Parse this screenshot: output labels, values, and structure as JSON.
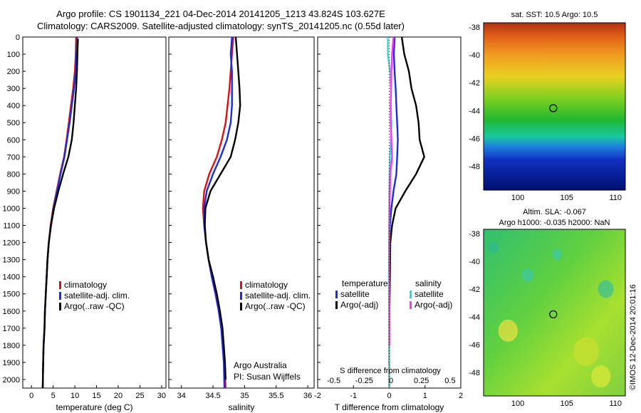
{
  "header": {
    "line1": "Argo profile: CS 1901134_221 04-Dec-2014 20141205_1213 43.824S 103.627E",
    "line2": "Climatology: CARS2009. Satellite-adjusted climatology: synTS_20141205.nc (0.55d later)"
  },
  "watermark": "©IMOS 12-Dec-2014 20:01:16",
  "colors": {
    "climatology": "#e01010",
    "satellite": "#1a2ee0",
    "argo": "#000000",
    "sat_salinity": "#20e0e0",
    "argo_salinity": "#ff33ff"
  },
  "chart_data": [
    {
      "type": "line",
      "id": "temperature",
      "xlabel": "temperature (deg C)",
      "xlim": [
        -2,
        31
      ],
      "xticks": [
        0,
        5,
        10,
        15,
        20,
        25,
        30
      ],
      "ylim": [
        0,
        2050
      ],
      "yticks": [
        0,
        100,
        200,
        300,
        400,
        500,
        600,
        700,
        800,
        900,
        1000,
        1100,
        1200,
        1300,
        1400,
        1500,
        1600,
        1700,
        1800,
        1900,
        2000
      ],
      "legend": [
        "climatology",
        "satellite-adj. clim.",
        "Argo(..raw -QC)"
      ],
      "series": [
        {
          "name": "climatology",
          "color": "#e01010",
          "points": [
            [
              10.3,
              0
            ],
            [
              10.2,
              100
            ],
            [
              10,
              200
            ],
            [
              9.6,
              300
            ],
            [
              9.1,
              400
            ],
            [
              8.6,
              500
            ],
            [
              8.1,
              600
            ],
            [
              7.5,
              700
            ],
            [
              6.6,
              800
            ],
            [
              5.8,
              900
            ],
            [
              5,
              1000
            ],
            [
              4.4,
              1100
            ],
            [
              4,
              1200
            ],
            [
              3.7,
              1300
            ],
            [
              3.5,
              1400
            ],
            [
              3.3,
              1500
            ],
            [
              3.1,
              1600
            ],
            [
              3,
              1700
            ],
            [
              2.8,
              1800
            ],
            [
              2.7,
              1900
            ],
            [
              2.6,
              2050
            ]
          ]
        },
        {
          "name": "satellite-adj. clim.",
          "color": "#1a2ee0",
          "points": [
            [
              10.5,
              0
            ],
            [
              10.4,
              100
            ],
            [
              10.2,
              200
            ],
            [
              9.8,
              300
            ],
            [
              9.3,
              400
            ],
            [
              8.8,
              500
            ],
            [
              8.2,
              600
            ],
            [
              7.6,
              700
            ],
            [
              6.7,
              800
            ],
            [
              5.9,
              900
            ],
            [
              5.1,
              1000
            ],
            [
              4.5,
              1100
            ],
            [
              4,
              1200
            ],
            [
              3.7,
              1300
            ],
            [
              3.5,
              1400
            ],
            [
              3.3,
              1500
            ],
            [
              3.1,
              1600
            ],
            [
              3,
              1700
            ],
            [
              2.8,
              1800
            ],
            [
              2.7,
              1900
            ],
            [
              2.6,
              2050
            ]
          ]
        },
        {
          "name": "Argo(..raw -QC)",
          "color": "#000000",
          "points": [
            [
              10.7,
              10
            ],
            [
              10.6,
              100
            ],
            [
              10.5,
              200
            ],
            [
              10.3,
              300
            ],
            [
              10,
              400
            ],
            [
              9.7,
              500
            ],
            [
              9.3,
              600
            ],
            [
              8.5,
              700
            ],
            [
              7.3,
              800
            ],
            [
              6.2,
              900
            ],
            [
              5.2,
              1000
            ],
            [
              4.5,
              1100
            ],
            [
              4,
              1200
            ],
            [
              3.7,
              1300
            ],
            [
              3.5,
              1400
            ],
            [
              3.3,
              1500
            ],
            [
              3.1,
              1600
            ],
            [
              3,
              1700
            ],
            [
              2.8,
              1800
            ],
            [
              2.7,
              1900
            ],
            [
              2.6,
              2050
            ]
          ]
        }
      ]
    },
    {
      "type": "line",
      "id": "salinity",
      "xlabel": "salinity",
      "xlim": [
        33.8,
        36.1
      ],
      "xticks": [
        34,
        34.5,
        35,
        35.5,
        36
      ],
      "ylim": [
        0,
        2050
      ],
      "legend": [
        "climatology",
        "satellite-adj. clim.",
        "Argo(..raw -QC)"
      ],
      "annotation": [
        "Argo Australia",
        "PI: Susan Wijffels"
      ],
      "series": [
        {
          "name": "climatology",
          "color": "#e01010",
          "points": [
            [
              34.82,
              0
            ],
            [
              34.8,
              100
            ],
            [
              34.78,
              200
            ],
            [
              34.76,
              300
            ],
            [
              34.73,
              400
            ],
            [
              34.7,
              500
            ],
            [
              34.64,
              600
            ],
            [
              34.56,
              700
            ],
            [
              34.44,
              800
            ],
            [
              34.36,
              900
            ],
            [
              34.34,
              1000
            ],
            [
              34.36,
              1100
            ],
            [
              34.39,
              1200
            ],
            [
              34.43,
              1300
            ],
            [
              34.48,
              1400
            ],
            [
              34.54,
              1500
            ],
            [
              34.59,
              1600
            ],
            [
              34.63,
              1700
            ],
            [
              34.66,
              1800
            ],
            [
              34.68,
              1900
            ],
            [
              34.7,
              2050
            ]
          ]
        },
        {
          "name": "satellite-adj. clim.",
          "color": "#1a2ee0",
          "points": [
            [
              34.8,
              0
            ],
            [
              34.78,
              100
            ],
            [
              34.8,
              200
            ],
            [
              34.8,
              300
            ],
            [
              34.8,
              400
            ],
            [
              34.78,
              500
            ],
            [
              34.72,
              600
            ],
            [
              34.62,
              700
            ],
            [
              34.5,
              800
            ],
            [
              34.4,
              900
            ],
            [
              34.36,
              1000
            ],
            [
              34.36,
              1100
            ],
            [
              34.39,
              1200
            ],
            [
              34.43,
              1300
            ],
            [
              34.48,
              1400
            ],
            [
              34.54,
              1500
            ],
            [
              34.59,
              1600
            ],
            [
              34.63,
              1700
            ],
            [
              34.65,
              1800
            ],
            [
              34.67,
              1900
            ],
            [
              34.68,
              2050
            ]
          ]
        },
        {
          "name": "Argo(..raw -QC)",
          "color": "#000000",
          "points": [
            [
              34.86,
              0
            ],
            [
              34.88,
              100
            ],
            [
              34.9,
              200
            ],
            [
              34.92,
              300
            ],
            [
              34.93,
              400
            ],
            [
              34.9,
              500
            ],
            [
              34.85,
              600
            ],
            [
              34.78,
              700
            ],
            [
              34.62,
              800
            ],
            [
              34.46,
              900
            ],
            [
              34.38,
              1000
            ],
            [
              34.37,
              1100
            ],
            [
              34.39,
              1200
            ],
            [
              34.43,
              1300
            ],
            [
              34.5,
              1400
            ],
            [
              34.56,
              1500
            ],
            [
              34.61,
              1600
            ],
            [
              34.65,
              1700
            ],
            [
              34.67,
              1800
            ],
            [
              34.69,
              1900
            ],
            [
              34.7,
              2000
            ]
          ]
        }
      ]
    },
    {
      "type": "line",
      "id": "difference",
      "xlabel": "T difference from climatology",
      "top_label": "S difference from climatology",
      "xlim": [
        -2,
        2
      ],
      "xticks": [
        -2,
        -1,
        0,
        1,
        2
      ],
      "s_ticks": [
        "-0.5",
        "-0.25",
        "0",
        "0.25",
        "0.5"
      ],
      "ylim": [
        0,
        2050
      ],
      "legend": {
        "temperature": {
          "title": "temperature",
          "items": [
            "satellite",
            "Argo(-adj)"
          ]
        },
        "salinity": {
          "title": "salinity",
          "items": [
            "satellite",
            "Argo(-adj)"
          ]
        }
      },
      "series": [
        {
          "name": "satellite",
          "color": "#1a2ee0",
          "points": [
            [
              0.15,
              0
            ],
            [
              0.13,
              100
            ],
            [
              0.15,
              200
            ],
            [
              0.18,
              300
            ],
            [
              0.2,
              400
            ],
            [
              0.22,
              500
            ],
            [
              0.24,
              600
            ],
            [
              0.22,
              700
            ],
            [
              0.2,
              800
            ],
            [
              0.12,
              900
            ],
            [
              0.06,
              1000
            ],
            [
              0.02,
              1100
            ],
            [
              0,
              1200
            ],
            [
              0,
              1400
            ],
            [
              0,
              1700
            ],
            [
              0,
              2050
            ]
          ]
        },
        {
          "name": "Argo(-adj)",
          "color": "#000000",
          "points": [
            [
              0.35,
              0
            ],
            [
              0.42,
              100
            ],
            [
              0.55,
              200
            ],
            [
              0.62,
              300
            ],
            [
              0.75,
              400
            ],
            [
              0.82,
              500
            ],
            [
              0.85,
              600
            ],
            [
              0.98,
              700
            ],
            [
              0.75,
              800
            ],
            [
              0.45,
              900
            ],
            [
              0.18,
              1000
            ],
            [
              0.08,
              1100
            ],
            [
              0.03,
              1200
            ],
            [
              0.02,
              1400
            ],
            [
              0,
              1700
            ]
          ]
        },
        {
          "name": "satellite",
          "color": "#20e0e0",
          "points": [
            [
              -0.04,
              0
            ],
            [
              -0.04,
              100
            ],
            [
              0.02,
              200
            ],
            [
              0.05,
              300
            ],
            [
              0.04,
              400
            ],
            [
              0.06,
              500
            ],
            [
              0.05,
              600
            ],
            [
              0.02,
              700
            ],
            [
              0.01,
              800
            ],
            [
              0,
              900
            ],
            [
              0,
              1100
            ],
            [
              -0.01,
              1400
            ],
            [
              0,
              1700
            ],
            [
              0,
              2050
            ]
          ]
        },
        {
          "name": "Argo(-adj)",
          "color": "#ff33ff",
          "points": [
            [
              0.12,
              0
            ],
            [
              0.08,
              100
            ],
            [
              0.06,
              200
            ],
            [
              0.05,
              300
            ],
            [
              0.04,
              400
            ],
            [
              0.04,
              500
            ],
            [
              0.06,
              600
            ],
            [
              0.08,
              700
            ],
            [
              0.03,
              800
            ],
            [
              0.02,
              900
            ],
            [
              0.01,
              1000
            ],
            [
              0,
              1100
            ],
            [
              0,
              1400
            ],
            [
              0.01,
              1700
            ],
            [
              0.01,
              1800
            ]
          ]
        }
      ]
    },
    {
      "type": "heatmap",
      "id": "sst-map",
      "title": "sat. SST: 10.5 Argo: 10.5",
      "xticks": [
        100,
        105,
        110
      ],
      "yticks": [
        -38,
        -40,
        -42,
        -44,
        -46,
        -48
      ],
      "xlim": [
        96.5,
        111
      ],
      "ylim": [
        -49.7,
        -37.7
      ],
      "marker": [
        103.627,
        -43.824
      ]
    },
    {
      "type": "heatmap",
      "id": "sla-map",
      "title_line1": "Altim. SLA: -0.067",
      "title_line2": "Argo h1000: -0.035 h2000: NaN",
      "xticks": [
        100,
        105,
        110
      ],
      "yticks": [
        -38,
        -40,
        -42,
        -44,
        -46,
        -48
      ],
      "xlim": [
        96.5,
        111
      ],
      "ylim": [
        -49.7,
        -37.7
      ],
      "marker": [
        103.627,
        -43.824
      ]
    }
  ]
}
